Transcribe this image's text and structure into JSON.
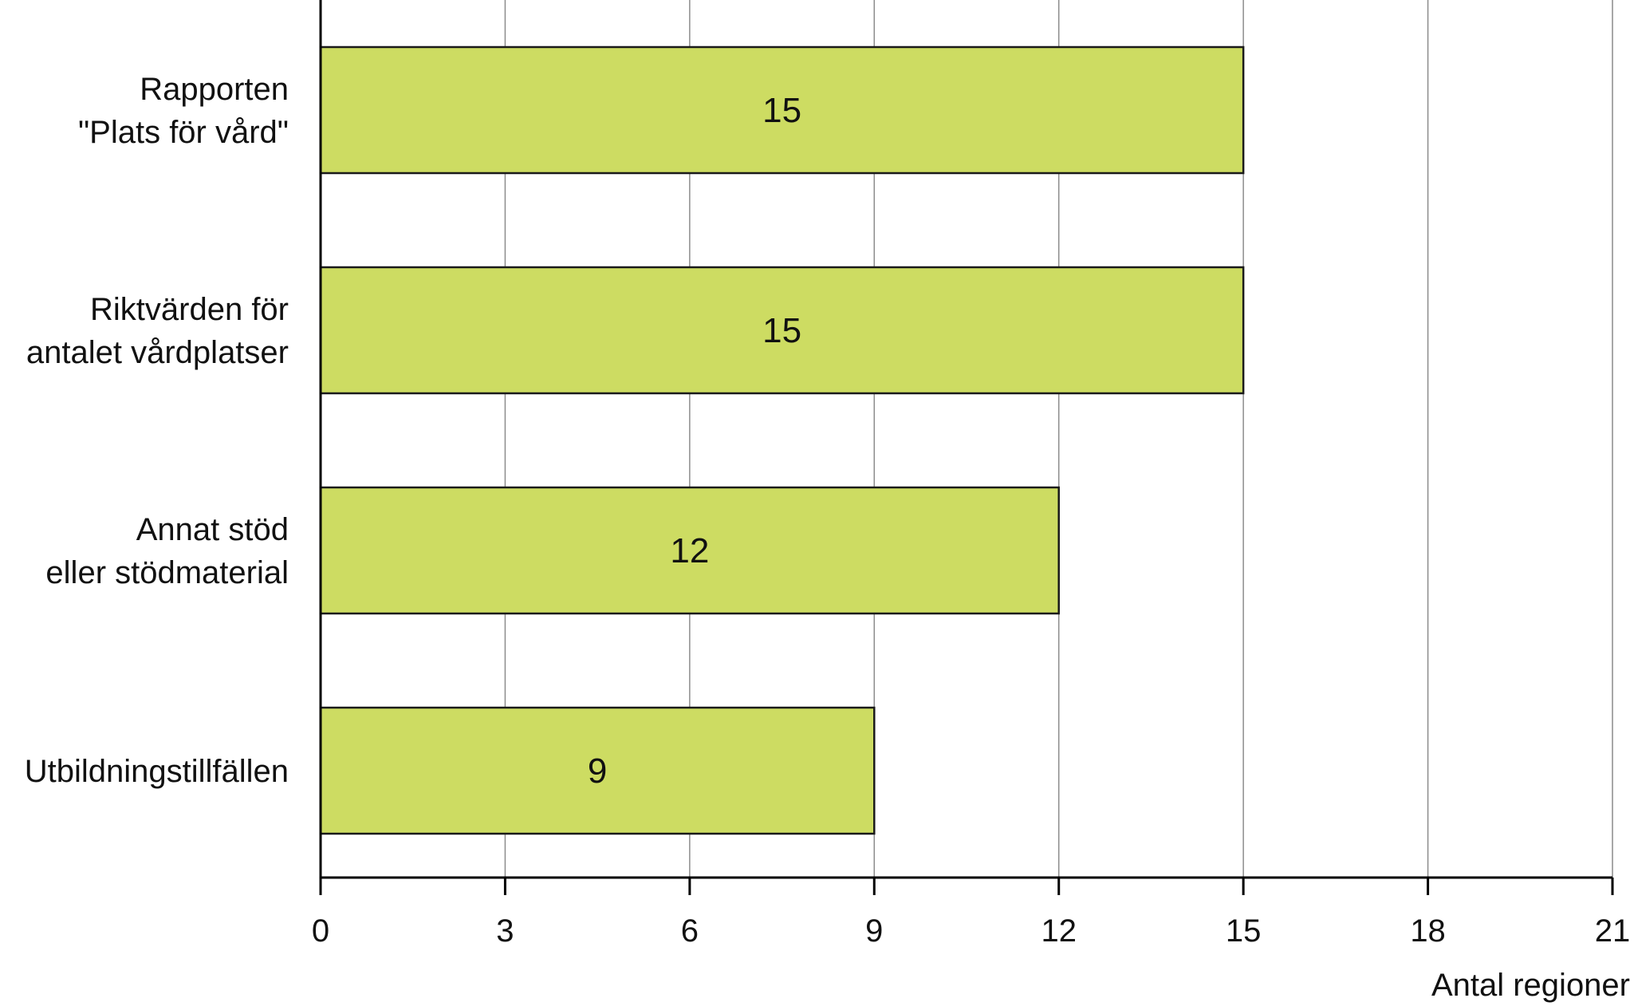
{
  "chart_data": {
    "type": "bar",
    "orientation": "horizontal",
    "categories": [
      [
        "Rapporten",
        "\"Plats för vård\""
      ],
      [
        "Riktvärden för",
        "antalet vårdplatser"
      ],
      [
        "Annat stöd",
        "eller stödmaterial"
      ],
      [
        "Utbildningstillfällen"
      ]
    ],
    "values": [
      15,
      15,
      12,
      9
    ],
    "data_labels": [
      "15",
      "15",
      "12",
      "9"
    ],
    "xlabel": "Antal regioner",
    "xlim": [
      0,
      21
    ],
    "xticks": [
      0,
      3,
      6,
      9,
      12,
      15,
      18,
      21
    ],
    "xtick_labels": [
      "0",
      "3",
      "6",
      "9",
      "12",
      "15",
      "18",
      "21"
    ],
    "grid": "vertical",
    "bar_color": "#cddc62",
    "bar_edge_color": "#1a1a1a",
    "legend": "none"
  }
}
